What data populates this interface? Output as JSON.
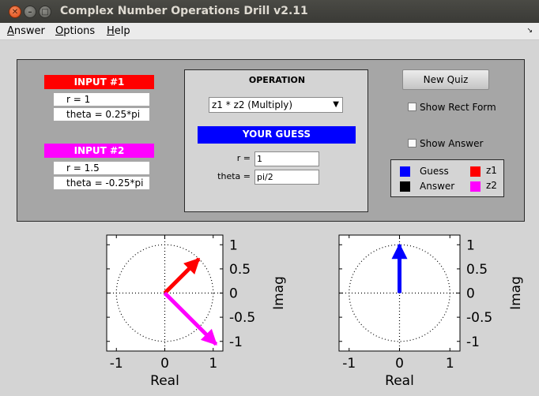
{
  "window": {
    "title": "Complex Number Operations Drill v2.11"
  },
  "menu": {
    "answer": {
      "first": "A",
      "rest": "nswer"
    },
    "options": {
      "first": "O",
      "rest": "ptions"
    },
    "help": {
      "first": "H",
      "rest": "elp"
    }
  },
  "input1": {
    "header": "INPUT #1",
    "r": "r = 1",
    "theta": "theta = 0.25*pi",
    "color": "#ff0000"
  },
  "input2": {
    "header": "INPUT #2",
    "r": "r = 1.5",
    "theta": "theta = -0.25*pi",
    "color": "#ff00ff"
  },
  "operation": {
    "title": "OPERATION",
    "selected": "z1 * z2   (Multiply)",
    "guess_header": "YOUR GUESS",
    "r_label": "r =",
    "theta_label": "theta =",
    "r_value": "1",
    "theta_value": "pi/2"
  },
  "controls": {
    "new_quiz": "New Quiz",
    "show_rect_form": "Show Rect Form",
    "show_answer": "Show Answer",
    "show_rect_form_checked": false,
    "show_answer_checked": false
  },
  "legend": {
    "guess": "Guess",
    "answer": "Answer",
    "z1": "z1",
    "z2": "z2",
    "guess_color": "#0000ff",
    "answer_color": "#000000",
    "z1_color": "#ff0000",
    "z2_color": "#ff00ff"
  },
  "plots": {
    "xlabel": "Real",
    "ylabel": "Imag",
    "xticks": [
      "-1",
      "0",
      "1"
    ],
    "yticks": [
      "1",
      "0.5",
      "0",
      "-0.5",
      "-1"
    ]
  },
  "chart_data": [
    {
      "type": "scatter",
      "title": "",
      "xlabel": "Real",
      "ylabel": "Imag",
      "xlim": [
        -1.2,
        1.2
      ],
      "ylim": [
        -1.2,
        1.2
      ],
      "series": [
        {
          "name": "z1",
          "color": "#ff0000",
          "from": [
            0,
            0
          ],
          "to": [
            0.707,
            0.707
          ]
        },
        {
          "name": "z2",
          "color": "#ff00ff",
          "from": [
            0,
            0
          ],
          "to": [
            1.061,
            -1.061
          ]
        }
      ]
    },
    {
      "type": "scatter",
      "title": "",
      "xlabel": "Real",
      "ylabel": "Imag",
      "xlim": [
        -1.2,
        1.2
      ],
      "ylim": [
        -1.2,
        1.2
      ],
      "series": [
        {
          "name": "Guess",
          "color": "#0000ff",
          "from": [
            0,
            0
          ],
          "to": [
            0,
            1
          ]
        }
      ]
    }
  ]
}
